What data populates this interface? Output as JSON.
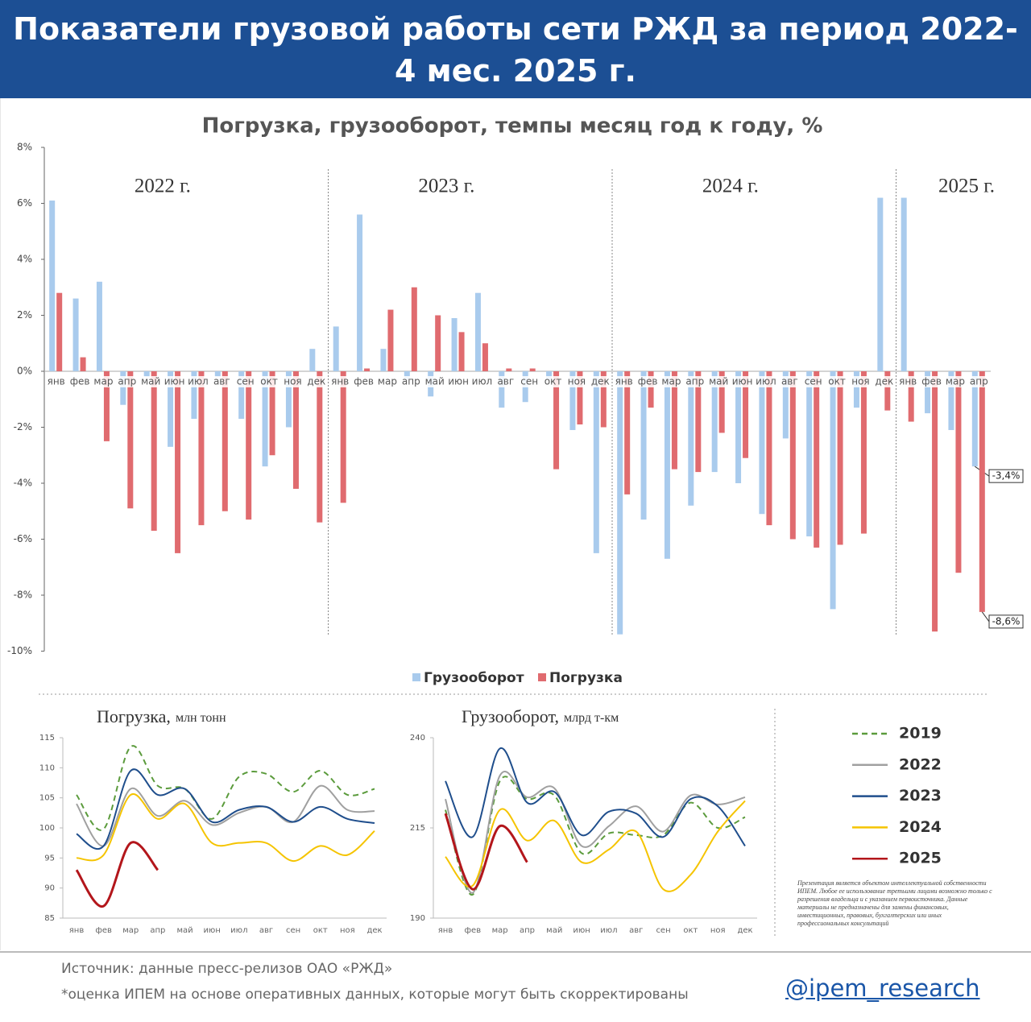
{
  "header": {
    "title_line1": "Показатели грузовой работы сети РЖД за период 2022-",
    "title_line2": "4 мес. 2025 г."
  },
  "chart_data": [
    {
      "type": "bar",
      "title": "Погрузка, грузооборот, темпы месяц год к году, %",
      "categories": [
        "янв",
        "фев",
        "мар",
        "апр",
        "май",
        "июн",
        "июл",
        "авг",
        "сен",
        "окт",
        "ноя",
        "дек",
        "янв",
        "фев",
        "мар",
        "апр",
        "май",
        "июн",
        "июл",
        "авг",
        "сен",
        "окт",
        "ноя",
        "дек",
        "янв",
        "фев",
        "мар",
        "апр",
        "май",
        "июн",
        "июл",
        "авг",
        "сен",
        "окт",
        "ноя",
        "дек",
        "янв",
        "фев",
        "мар",
        "апр"
      ],
      "year_labels": [
        "2022 г.",
        "2023 г.",
        "2024 г.",
        "2025 г."
      ],
      "series": [
        {
          "name": "Грузооборот",
          "color": "#a9cbed",
          "values": [
            6.1,
            2.6,
            3.2,
            -1.2,
            -0.2,
            -2.7,
            -1.7,
            -0.2,
            -1.7,
            -3.4,
            -2.0,
            0.8,
            1.6,
            5.6,
            0.8,
            -0.3,
            -0.9,
            1.9,
            2.8,
            -1.3,
            -1.1,
            -0.3,
            -2.1,
            -6.5,
            -9.4,
            -5.3,
            -6.7,
            -4.8,
            -3.6,
            -4.0,
            -5.1,
            -2.4,
            -5.9,
            -8.5,
            -1.3,
            6.2,
            6.2,
            -1.5,
            -2.1,
            -3.4
          ],
          "value_labels": [
            null,
            null,
            null,
            null,
            null,
            null,
            null,
            null,
            null,
            null,
            null,
            null,
            null,
            null,
            null,
            null,
            null,
            null,
            null,
            null,
            null,
            null,
            null,
            null,
            null,
            null,
            null,
            null,
            null,
            null,
            null,
            null,
            null,
            null,
            null,
            null,
            null,
            null,
            null,
            "-3,4%"
          ]
        },
        {
          "name": "Погрузка",
          "color": "#e06b6f",
          "values": [
            2.8,
            0.5,
            -2.5,
            -4.9,
            -5.7,
            -6.5,
            -5.5,
            -5.0,
            -5.3,
            -3.0,
            -4.2,
            -5.4,
            -4.7,
            0.1,
            2.2,
            3.0,
            2.0,
            1.4,
            1.0,
            0.1,
            0.1,
            -3.5,
            -1.9,
            -2.0,
            -4.4,
            -1.3,
            -3.5,
            -3.6,
            -2.2,
            -3.1,
            -5.5,
            -6.0,
            -6.3,
            -6.2,
            -5.8,
            -1.4,
            -1.8,
            -9.3,
            -7.2,
            -8.6
          ],
          "value_labels": [
            null,
            null,
            null,
            null,
            null,
            null,
            null,
            null,
            null,
            null,
            null,
            null,
            null,
            null,
            null,
            null,
            null,
            null,
            null,
            null,
            null,
            null,
            null,
            null,
            null,
            null,
            null,
            null,
            null,
            null,
            null,
            null,
            null,
            null,
            null,
            null,
            null,
            null,
            null,
            "-8,6%"
          ]
        }
      ],
      "ylim": [
        -10,
        8
      ],
      "yticks": [
        {
          "value": 8,
          "label": "8%"
        },
        {
          "value": 6,
          "label": "6%"
        },
        {
          "value": 4,
          "label": "4%"
        },
        {
          "value": 2,
          "label": "2%"
        },
        {
          "value": 0,
          "label": "0%"
        },
        {
          "value": -2,
          "label": "-2%"
        },
        {
          "value": -4,
          "label": "-4%"
        },
        {
          "value": -6,
          "label": "-6%"
        },
        {
          "value": -8,
          "label": "-8%"
        },
        {
          "value": -10,
          "label": "-10%"
        }
      ],
      "legend": "bottom"
    },
    {
      "type": "line",
      "title": "Погрузка,",
      "unit": "млн тонн",
      "categories": [
        "янв",
        "фев",
        "мар",
        "апр",
        "май",
        "июн",
        "июл",
        "авг",
        "сен",
        "окт",
        "ноя",
        "дек"
      ],
      "series": [
        {
          "name": "2019",
          "color": "#5b9b3c",
          "dash": true,
          "values": [
            105.5,
            99.8,
            113.5,
            107,
            106.5,
            101.5,
            108.5,
            109,
            106,
            109.5,
            105.5,
            106.5
          ]
        },
        {
          "name": "2022",
          "color": "#a0a0a0",
          "dash": false,
          "values": [
            104,
            97,
            106.5,
            102,
            104.5,
            100.5,
            102.5,
            103.5,
            101,
            107,
            103,
            102.8
          ]
        },
        {
          "name": "2023",
          "color": "#1f4e8c",
          "dash": false,
          "values": [
            99,
            97,
            109.5,
            105.5,
            106.5,
            101,
            103,
            103.5,
            101,
            103.5,
            101.5,
            100.8
          ]
        },
        {
          "name": "2024",
          "color": "#f5c400",
          "dash": false,
          "values": [
            95,
            95.5,
            105.5,
            101.5,
            104,
            97.5,
            97.5,
            97.5,
            94.5,
            97,
            95.5,
            99.5
          ]
        },
        {
          "name": "2025",
          "color": "#b3161b",
          "dash": false,
          "values": [
            93,
            87,
            97.5,
            93,
            null,
            null,
            null,
            null,
            null,
            null,
            null,
            null
          ]
        }
      ],
      "ylim": [
        85,
        115
      ],
      "yticks": [
        85,
        90,
        95,
        100,
        105,
        110,
        115
      ]
    },
    {
      "type": "line",
      "title": "Грузооборот,",
      "unit": "млрд т-км",
      "categories": [
        "янв",
        "фев",
        "мар",
        "апр",
        "май",
        "июн",
        "июл",
        "авг",
        "сен",
        "окт",
        "ноя",
        "дек"
      ],
      "series": [
        {
          "color": "#5b9b3c",
          "dash": true,
          "values": [
            220,
            196.5,
            228,
            223,
            224,
            208,
            213.5,
            213,
            213,
            222,
            215,
            218
          ]
        },
        {
          "color": "#a0a0a0",
          "dash": false,
          "values": [
            223,
            197,
            229.5,
            223.5,
            226,
            210,
            215.5,
            221,
            214,
            224,
            221.5,
            223.5
          ]
        },
        {
          "color": "#1f4e8c",
          "dash": false,
          "values": [
            228,
            212.5,
            237,
            222,
            225,
            213,
            219.5,
            219,
            212.5,
            223,
            221,
            210
          ]
        },
        {
          "color": "#f5c400",
          "dash": false,
          "values": [
            207,
            199,
            220,
            211.5,
            217,
            205.5,
            209,
            214,
            198,
            202,
            214,
            222.5
          ]
        },
        {
          "color": "#b3161b",
          "dash": false,
          "values": [
            219,
            198,
            215.5,
            205.5,
            null,
            null,
            null,
            null,
            null,
            null,
            null,
            null
          ]
        }
      ],
      "ylim": [
        190,
        240
      ],
      "yticks": [
        190,
        215,
        240
      ]
    }
  ],
  "disclaimer": "Презентация является объектом интеллектуальной собственности ИПЕМ. Любое ее использование третьими лицами возможно только с разрешения владельца и с указанием первоисточника. Данные материалы не предназначены для замены финансовых, инвестиционных, правовых, бухгалтерских или иных профессиональных консультаций",
  "footer": {
    "source": "Источник: данные пресс-релизов ОАО «РЖД»",
    "note": "*оценка ИПЕМ на основе оперативных данных, которые могут быть скорректированы",
    "link": "@ipem_research"
  }
}
